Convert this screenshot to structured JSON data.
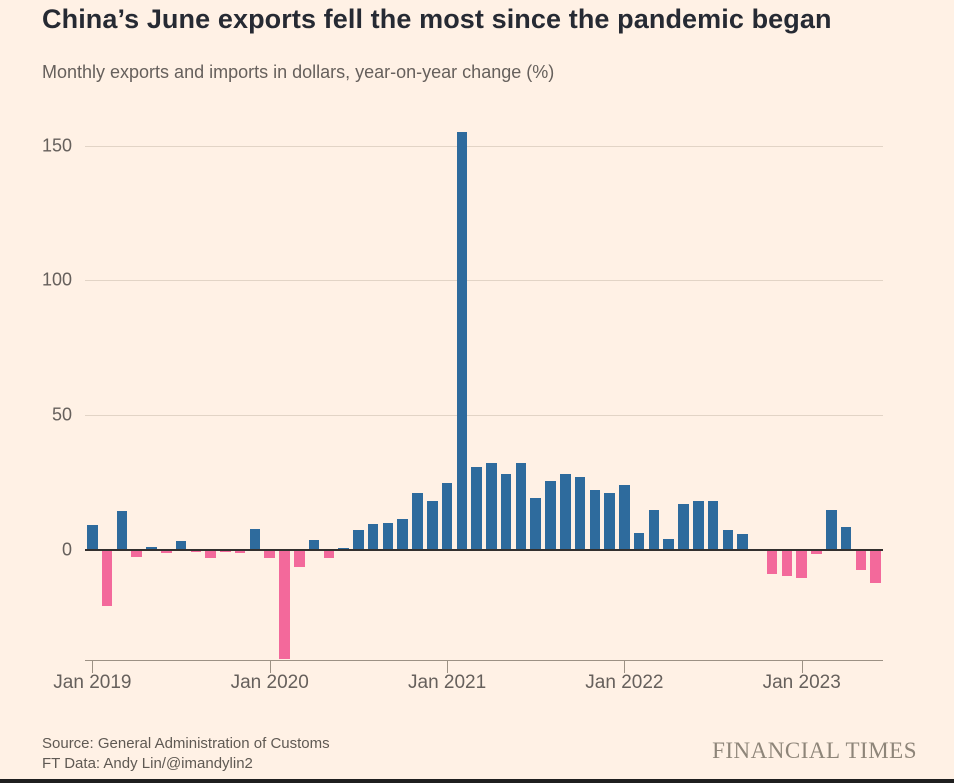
{
  "header": {
    "title": "China’s June exports fell the most since the pandemic began",
    "subtitle": "Monthly exports and imports in dollars, year-on-year change (%)"
  },
  "footer": {
    "source_line1": "Source: General Administration of Customs",
    "source_line2": "FT Data: Andy Lin/@imandylin2",
    "brand": "FINANCIAL TIMES"
  },
  "colors": {
    "background": "#fff1e5",
    "positive_bar": "#2e6b9d",
    "negative_bar": "#f3699b",
    "gridline": "#e2d4c6",
    "zero_line": "#33302e",
    "axis_line": "#9c9184",
    "tick_text": "#66605c"
  },
  "chart_data": {
    "type": "bar",
    "title": "China’s June exports fell the most since the pandemic began",
    "subtitle": "Monthly exports and imports in dollars, year-on-year change (%)",
    "series_name": "China exports, year-on-year % change",
    "x": [
      "Jan 2019",
      "Feb 2019",
      "Mar 2019",
      "Apr 2019",
      "May 2019",
      "Jun 2019",
      "Jul 2019",
      "Aug 2019",
      "Sep 2019",
      "Oct 2019",
      "Nov 2019",
      "Dec 2019",
      "Jan 2020",
      "Feb 2020",
      "Mar 2020",
      "Apr 2020",
      "May 2020",
      "Jun 2020",
      "Jul 2020",
      "Aug 2020",
      "Sep 2020",
      "Oct 2020",
      "Nov 2020",
      "Dec 2020",
      "Jan 2021",
      "Feb 2021",
      "Mar 2021",
      "Apr 2021",
      "May 2021",
      "Jun 2021",
      "Jul 2021",
      "Aug 2021",
      "Sep 2021",
      "Oct 2021",
      "Nov 2021",
      "Dec 2021",
      "Jan 2022",
      "Feb 2022",
      "Mar 2022",
      "Apr 2022",
      "May 2022",
      "Jun 2022",
      "Jul 2022",
      "Aug 2022",
      "Sep 2022",
      "Oct 2022",
      "Nov 2022",
      "Dec 2022",
      "Jan 2023",
      "Feb 2023",
      "Mar 2023",
      "Apr 2023",
      "May 2023",
      "Jun 2023"
    ],
    "values": [
      9.1,
      -20.8,
      14.2,
      -2.7,
      1.1,
      -1.3,
      3.3,
      -1.0,
      -3.2,
      -0.9,
      -1.3,
      7.6,
      -3.3,
      -40.6,
      -6.6,
      3.5,
      -3.3,
      0.5,
      7.2,
      9.5,
      9.9,
      11.4,
      21.1,
      18.1,
      24.8,
      154.9,
      30.6,
      32.3,
      27.9,
      32.2,
      19.3,
      25.6,
      28.1,
      27.1,
      22.0,
      20.9,
      24.1,
      6.3,
      14.7,
      3.9,
      16.9,
      17.9,
      18.0,
      7.1,
      5.7,
      -0.3,
      -8.9,
      -9.9,
      -10.5,
      -1.8,
      14.8,
      8.5,
      -7.5,
      -12.4
    ],
    "yticks": [
      0,
      50,
      100,
      150
    ],
    "ylim": [
      -41,
      158
    ],
    "xticks": [
      {
        "label": "Jan 2019",
        "index": 0
      },
      {
        "label": "Jan 2020",
        "index": 12
      },
      {
        "label": "Jan 2021",
        "index": 24
      },
      {
        "label": "Jan 2022",
        "index": 36
      },
      {
        "label": "Jan 2023",
        "index": 48
      }
    ],
    "grid": true,
    "legend": "none",
    "positive_color": "#2e6b9d",
    "negative_color": "#f3699b"
  }
}
